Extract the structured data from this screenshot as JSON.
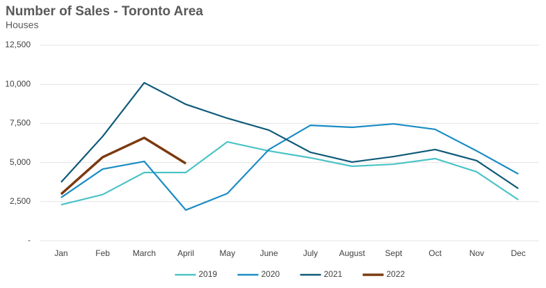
{
  "chart_data": {
    "type": "line",
    "title": "Number of Sales - Toronto Area",
    "subtitle": "Houses",
    "categories": [
      "Jan",
      "Feb",
      "March",
      "April",
      "May",
      "June",
      "July",
      "August",
      "Sept",
      "Oct",
      "Nov",
      "Dec"
    ],
    "series": [
      {
        "name": "2019",
        "color": "#4cc3c6",
        "values": [
          2300,
          2950,
          4360,
          4360,
          6320,
          5740,
          5300,
          4760,
          4890,
          5250,
          4400,
          2620
        ]
      },
      {
        "name": "2020",
        "color": "#1a8cc4",
        "values": [
          2760,
          4580,
          5070,
          1960,
          3020,
          5830,
          7380,
          7250,
          7470,
          7120,
          5740,
          4270
        ]
      },
      {
        "name": "2021",
        "color": "#0e5a78",
        "values": [
          3740,
          6670,
          10100,
          8720,
          7830,
          7070,
          5650,
          5030,
          5380,
          5830,
          5120,
          3340
        ]
      },
      {
        "name": "2022",
        "color": "#7b3a10",
        "values": [
          2980,
          5340,
          6580,
          4940,
          null,
          null,
          null,
          null,
          null,
          null,
          null,
          null
        ]
      }
    ],
    "ylim": [
      0,
      12500
    ],
    "yticks": [
      {
        "value": 0,
        "label": "-"
      },
      {
        "value": 2500,
        "label": "2,500"
      },
      {
        "value": 5000,
        "label": "5,000"
      },
      {
        "value": 7500,
        "label": "7,500"
      },
      {
        "value": 10000,
        "label": "10,000"
      },
      {
        "value": 12500,
        "label": "12,500"
      }
    ],
    "grid": true,
    "legend": "bottom"
  }
}
